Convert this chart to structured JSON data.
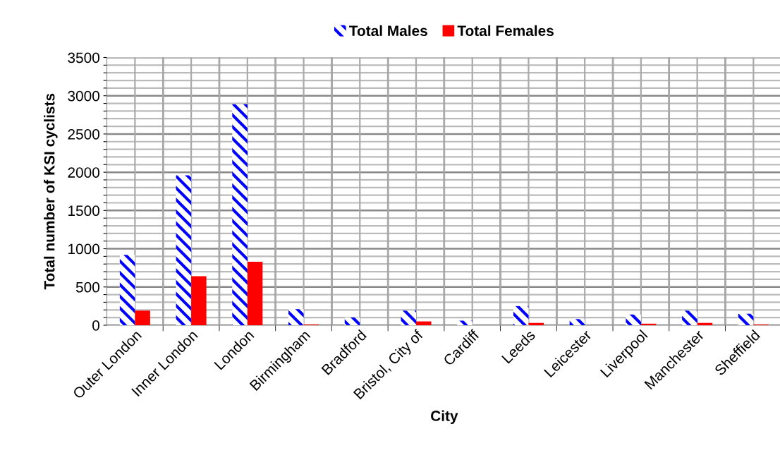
{
  "chart_data": {
    "type": "bar",
    "xlabel": "City",
    "ylabel": "Total number of KSI cyclists",
    "categories": [
      "Outer London",
      "Inner London",
      "London",
      "Birmingham",
      "Bradford",
      "Bristol, City of",
      "Cardiff",
      "Leeds",
      "Leicester",
      "Liverpool",
      "Manchester",
      "Sheffield"
    ],
    "series": [
      {
        "name": "Total Males",
        "color": "#0000ff",
        "values": [
          920,
          1960,
          2890,
          210,
          100,
          190,
          60,
          250,
          80,
          140,
          190,
          150
        ]
      },
      {
        "name": "Total Females",
        "color": "#ff0000",
        "values": [
          190,
          640,
          830,
          10,
          null,
          50,
          null,
          30,
          null,
          20,
          30,
          10
        ]
      }
    ],
    "ylim": [
      0,
      3500
    ],
    "yticks": [
      0,
      {
        "value": 100,
        "label": null
      },
      {
        "value": 200,
        "label": null
      },
      {
        "value": 300,
        "label": null
      },
      {
        "value": 400,
        "label": null
      },
      500,
      {
        "value": 600,
        "label": null
      },
      {
        "value": 700,
        "label": null
      },
      {
        "value": 800,
        "label": null
      },
      {
        "value": 900,
        "label": null
      },
      1000,
      {
        "value": 1100,
        "label": null
      },
      {
        "value": 1200,
        "label": null
      },
      {
        "value": 1300,
        "label": null
      },
      {
        "value": 1400,
        "label": null
      },
      1500,
      {
        "value": 1600,
        "label": null
      },
      {
        "value": 1700,
        "label": null
      },
      {
        "value": 1800,
        "label": null
      },
      {
        "value": 1900,
        "label": null
      },
      2000,
      {
        "value": 2100,
        "label": null
      },
      {
        "value": 2200,
        "label": null
      },
      {
        "value": 2300,
        "label": null
      },
      {
        "value": 2400,
        "label": null
      },
      2500,
      {
        "value": 2600,
        "label": null
      },
      {
        "value": 2700,
        "label": null
      },
      {
        "value": 2800,
        "label": null
      },
      {
        "value": 2900,
        "label": null
      },
      3000,
      {
        "value": 3100,
        "label": null
      },
      {
        "value": 3200,
        "label": null
      },
      {
        "value": 3300,
        "label": null
      },
      {
        "value": 3400,
        "label": null
      },
      3500
    ],
    "grid": true,
    "legend": "top"
  }
}
